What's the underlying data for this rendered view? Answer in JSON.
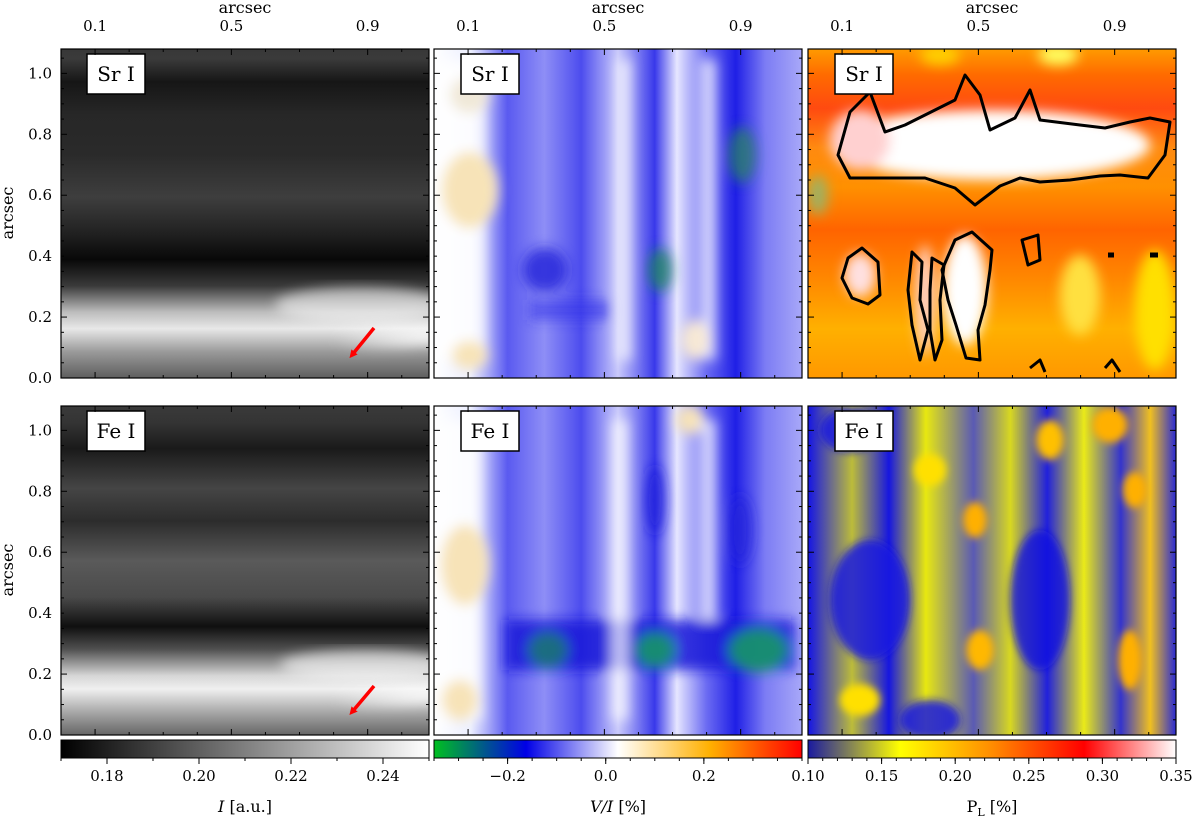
{
  "figure": {
    "top_axis_label": "arcsec",
    "y_axis_label": "arcsec",
    "x_ticks": [
      "0.1",
      "0.5",
      "0.9"
    ],
    "y_ticks": [
      "0.0",
      "0.2",
      "0.4",
      "0.6",
      "0.8",
      "1.0"
    ]
  },
  "chart_data": [
    {
      "type": "heatmap",
      "row": "top",
      "quantity": "I [a.u.]",
      "label": "Sr I",
      "colormap": "gray",
      "x_range_arcsec": [
        0.0,
        1.08
      ],
      "y_range_arcsec": [
        0.0,
        1.08
      ],
      "bands": [
        {
          "y": 0.04,
          "value": 0.21
        },
        {
          "y": 0.2,
          "value": 0.245
        },
        {
          "y": 0.39,
          "value": 0.172
        },
        {
          "y": 0.6,
          "value": 0.19
        },
        {
          "y": 0.7,
          "value": 0.185
        },
        {
          "y": 0.88,
          "value": 0.176
        },
        {
          "y": 1.05,
          "value": 0.2
        }
      ],
      "annotation": {
        "type": "arrow",
        "color": "#ff0000",
        "x": 0.85,
        "y": 0.06
      }
    },
    {
      "type": "heatmap",
      "row": "top",
      "quantity": "V/I [%]",
      "label": "Sr I",
      "colormap": "green-blue-white-orange-red",
      "x_range_arcsec": [
        0.0,
        1.08
      ],
      "y_range_arcsec": [
        0.0,
        1.08
      ]
    },
    {
      "type": "heatmap",
      "row": "top",
      "quantity": "P_L [%]",
      "label": "Sr I",
      "colormap": "blue-yellow-orange-red-white",
      "x_range_arcsec": [
        0.0,
        1.08
      ],
      "y_range_arcsec": [
        0.0,
        1.08
      ],
      "contour_color": "#000000"
    },
    {
      "type": "heatmap",
      "row": "bottom",
      "quantity": "I [a.u.]",
      "label": "Fe I",
      "colormap": "gray",
      "x_range_arcsec": [
        0.0,
        1.08
      ],
      "y_range_arcsec": [
        0.0,
        1.08
      ],
      "bands": [
        {
          "y": 0.04,
          "value": 0.215
        },
        {
          "y": 0.2,
          "value": 0.245
        },
        {
          "y": 0.36,
          "value": 0.176
        },
        {
          "y": 0.56,
          "value": 0.205
        },
        {
          "y": 0.72,
          "value": 0.19
        },
        {
          "y": 0.9,
          "value": 0.18
        },
        {
          "y": 1.05,
          "value": 0.2
        }
      ],
      "annotation": {
        "type": "arrow",
        "color": "#ff0000",
        "x": 0.85,
        "y": 0.06
      }
    },
    {
      "type": "heatmap",
      "row": "bottom",
      "quantity": "V/I [%]",
      "label": "Fe I",
      "colormap": "green-blue-white-orange-red",
      "x_range_arcsec": [
        0.0,
        1.08
      ],
      "y_range_arcsec": [
        0.0,
        1.08
      ]
    },
    {
      "type": "heatmap",
      "row": "bottom",
      "quantity": "P_L [%]",
      "label": "Fe I",
      "colormap": "blue-yellow-orange-red-white",
      "x_range_arcsec": [
        0.0,
        1.08
      ],
      "y_range_arcsec": [
        0.0,
        1.08
      ]
    }
  ],
  "colorbars": [
    {
      "label": "I [a.u.]",
      "range": [
        0.17,
        0.25
      ],
      "ticks": [
        "0.18",
        "0.20",
        "0.22",
        "0.24"
      ],
      "tick_values": [
        0.18,
        0.2,
        0.22,
        0.24
      ],
      "colors": [
        "#000000",
        "#ffffff"
      ]
    },
    {
      "label": "V/I [%]",
      "range": [
        -0.35,
        0.4
      ],
      "ticks": [
        "−0.2",
        "0.0",
        "0.2"
      ],
      "tick_values": [
        -0.2,
        0.0,
        0.2
      ],
      "colors": [
        "#00c020",
        "#0000e6",
        "#ffffff",
        "#ffb000",
        "#ff0000"
      ]
    },
    {
      "label": "P_L [%]",
      "range": [
        0.1,
        0.35
      ],
      "ticks": [
        "0.10",
        "0.15",
        "0.20",
        "0.25",
        "0.30",
        "0.35"
      ],
      "tick_values": [
        0.1,
        0.15,
        0.2,
        0.25,
        0.3,
        0.35
      ],
      "colors": [
        "#1a1aa0",
        "#ffff00",
        "#ff8c00",
        "#ff0000",
        "#ffffff"
      ]
    }
  ],
  "colorbar_labels": {
    "intensity_main": "I",
    "intensity_unit": " [a.u.]",
    "stokes_main": "V/I",
    "stokes_unit": " [%]",
    "pl_main": "P",
    "pl_sub": "L",
    "pl_unit": " [%]"
  },
  "panel_labels": [
    "Sr I",
    "Sr I",
    "Sr I",
    "Fe I",
    "Fe I",
    "Fe I"
  ]
}
